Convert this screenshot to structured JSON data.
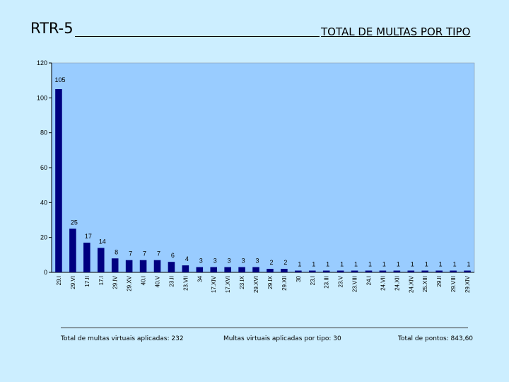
{
  "header": {
    "code": "RTR-5",
    "title": "TOTAL DE MULTAS POR TIPO"
  },
  "colors": {
    "background": "#cceeff",
    "plot_area": "#99ccff",
    "bar": "#000080"
  },
  "chart_data": {
    "type": "bar",
    "title": "TOTAL DE MULTAS POR TIPO",
    "xlabel": "",
    "ylabel": "",
    "ylim": [
      0,
      120
    ],
    "yticks": [
      0,
      20,
      40,
      60,
      80,
      100,
      120
    ],
    "grid": false,
    "categories": [
      "29.I",
      "29.VI",
      "17.II",
      "17.I",
      "29.IV",
      "29.XV",
      "40.I",
      "40.V",
      "23.II",
      "23.VII",
      "34",
      "17.XIV",
      "17.XVI",
      "23.IX",
      "29.XVI",
      "29.IX",
      "29.XII",
      "30",
      "23.I",
      "23.III",
      "23.V",
      "23.VIII",
      "24.I",
      "24.VII",
      "24.XII",
      "24.XIV",
      "25.XIII",
      "29.II",
      "29.VIII",
      "29.XIV"
    ],
    "values": [
      105,
      25,
      17,
      14,
      8,
      7,
      7,
      7,
      6,
      4,
      3,
      3,
      3,
      3,
      3,
      2,
      2,
      1,
      1,
      1,
      1,
      1,
      1,
      1,
      1,
      1,
      1,
      1,
      1,
      1
    ]
  },
  "footer": {
    "total_multas": "Total de multas virtuais aplicadas: 232",
    "por_tipo": "Multas virtuais aplicadas por tipo: 30",
    "total_pontos": "Total de pontos: 843,60"
  }
}
